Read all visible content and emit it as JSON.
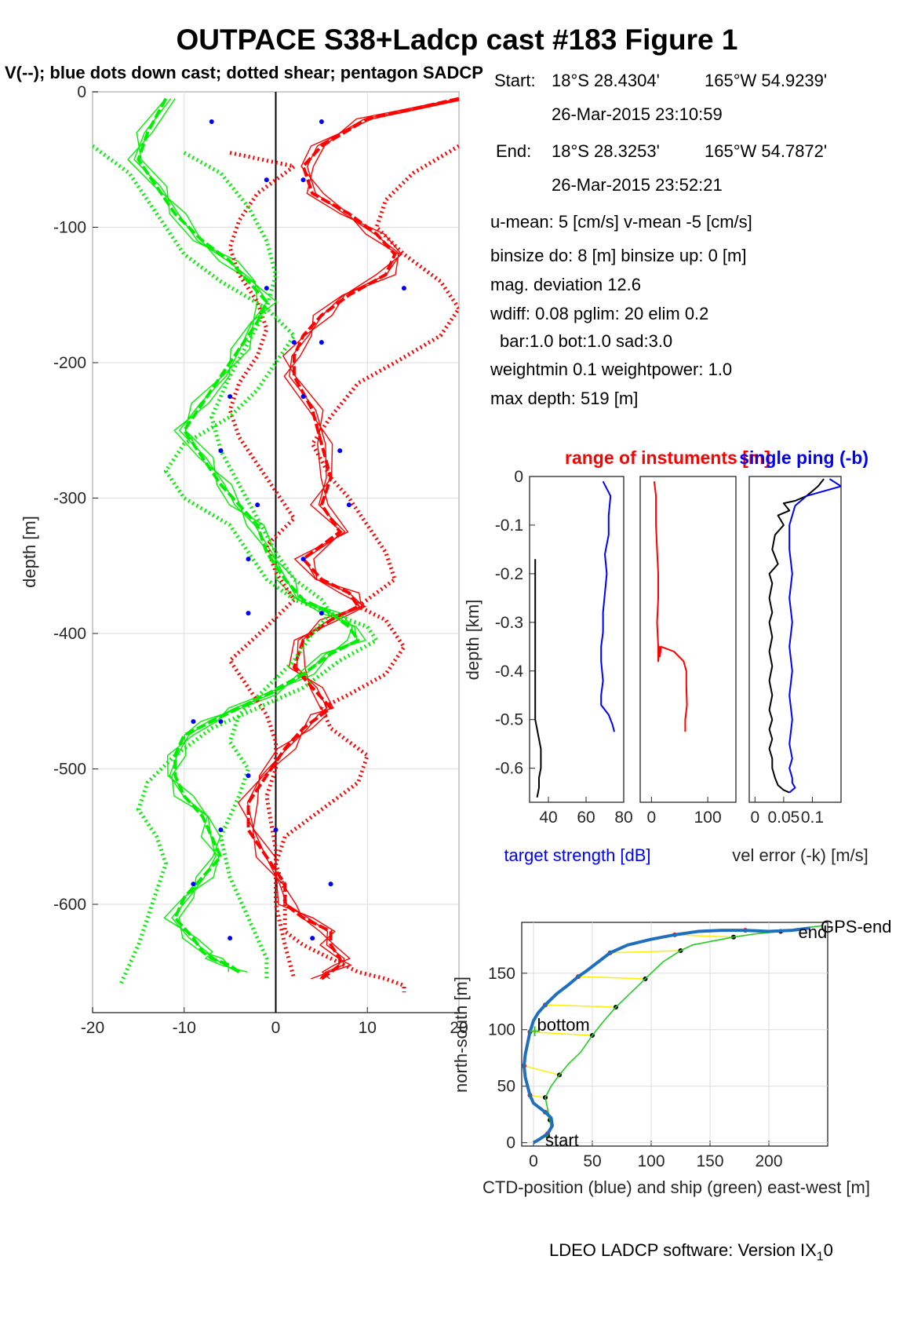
{
  "title": "OUTPACE S38+Ladcp cast #183  Figure 1",
  "subtitle": "V(--); blue dots down cast; dotted shear; pentagon SADCP",
  "info": {
    "start_label": "Start:",
    "start_lat": "18°S 28.4304'",
    "start_lon": "165°W 54.9239'",
    "start_time": "26-Mar-2015 23:10:59",
    "end_label": "End:",
    "end_lat": "18°S 28.3253'",
    "end_lon": "165°W 54.7872'",
    "end_time": "26-Mar-2015 23:52:21",
    "umean": "u-mean:   5 [cm/s]    v-mean  -5 [cm/s]",
    "binsize": "binsize do: 8 [m]  binsize up:  0 [m]",
    "magdev": "mag. deviation 12.6",
    "wdiff": "wdiff: 0.08  pglim: 20  elim 0.2",
    "bar": "bar:1.0 bot:1.0 sad:3.0",
    "weight": "weightmin 0.1  weightpower: 1.0",
    "maxdepth": "max depth: 519 [m]"
  },
  "footer": "LDEO LADCP software: Version IX",
  "footer_sub": "1",
  "footer_tail": "0",
  "colors": {
    "u": "#ff0000",
    "v": "#00ee00",
    "blue": "#0000ff",
    "track": "#1f6fbf",
    "ship": "#22cc22",
    "link": "#ffee00"
  },
  "chart_data": [
    {
      "type": "line",
      "ylabel": "depth [m]",
      "xlim": [
        -20,
        20
      ],
      "ylim": [
        -680,
        0
      ],
      "xticks": [
        -20,
        -10,
        0,
        10,
        20
      ],
      "yticks": [
        0,
        -100,
        -200,
        -300,
        -400,
        -500,
        -600
      ],
      "grid": true,
      "series": [
        {
          "color": "red",
          "style": "thick",
          "x": [
            20,
            10,
            5,
            3,
            4,
            8,
            11,
            13,
            12,
            8,
            5,
            3,
            2,
            2,
            4,
            5,
            6,
            5,
            7,
            3,
            5,
            8,
            9,
            6,
            3,
            2,
            4,
            6,
            5,
            3,
            1,
            -1,
            -3,
            -3,
            -1,
            1,
            1,
            3,
            6,
            6,
            7,
            7,
            6,
            5
          ],
          "y": [
            -5,
            -20,
            -40,
            -55,
            -75,
            -90,
            -105,
            -120,
            -135,
            -150,
            -165,
            -180,
            -195,
            -210,
            -235,
            -260,
            -285,
            -305,
            -325,
            -345,
            -360,
            -370,
            -380,
            -390,
            -405,
            -425,
            -440,
            -455,
            -460,
            -470,
            -485,
            -505,
            -525,
            -545,
            -565,
            -585,
            -600,
            -610,
            -620,
            -630,
            -640,
            -645,
            -650,
            -655
          ]
        },
        {
          "color": "red",
          "style": "dotted",
          "x": [
            20,
            15,
            12,
            11,
            14,
            18,
            20,
            18,
            13,
            9,
            6,
            4,
            6,
            8,
            10,
            12,
            13,
            9,
            12,
            14,
            12,
            8,
            5,
            6,
            10,
            9,
            5,
            1,
            0,
            1,
            1,
            1,
            3,
            6,
            9,
            12,
            14,
            14
          ],
          "y": [
            -40,
            -60,
            -80,
            -100,
            -120,
            -140,
            -160,
            -180,
            -200,
            -215,
            -240,
            -260,
            -285,
            -300,
            -320,
            -340,
            -360,
            -380,
            -390,
            -410,
            -430,
            -445,
            -455,
            -470,
            -490,
            -510,
            -530,
            -550,
            -570,
            -590,
            -600,
            -620,
            -630,
            -640,
            -650,
            -655,
            -660,
            -665
          ]
        },
        {
          "color": "red",
          "style": "dotted",
          "x": [
            -5,
            2,
            -2,
            -4,
            -5,
            -4,
            -2,
            -1,
            -2,
            -4,
            -5,
            -4,
            -2,
            0,
            2,
            -1,
            0,
            2,
            -1,
            -5,
            -3,
            -1,
            0,
            0,
            -1,
            0,
            0,
            1,
            2
          ],
          "y": [
            -45,
            -55,
            -75,
            -95,
            -115,
            -135,
            -155,
            -175,
            -195,
            -215,
            -235,
            -255,
            -275,
            -295,
            -315,
            -335,
            -355,
            -375,
            -395,
            -420,
            -440,
            -460,
            -480,
            -500,
            -520,
            -560,
            -600,
            -630,
            -655
          ]
        },
        {
          "color": "green",
          "style": "thick",
          "x": [
            -12,
            -14,
            -15,
            -13,
            -11,
            -8,
            -5,
            -3,
            -1,
            -2,
            -4,
            -6,
            -8,
            -10,
            -8,
            -6,
            -4,
            -2,
            -1,
            1,
            3,
            6,
            8,
            9,
            6,
            3,
            -1,
            -4,
            -7,
            -10,
            -11,
            -11,
            -10,
            -8,
            -7,
            -6,
            -8,
            -10,
            -11,
            -9,
            -8,
            -7,
            -5,
            -4
          ],
          "y": [
            -5,
            -30,
            -50,
            -70,
            -90,
            -110,
            -125,
            -140,
            -155,
            -170,
            -190,
            -210,
            -230,
            -250,
            -270,
            -290,
            -305,
            -320,
            -340,
            -360,
            -375,
            -385,
            -395,
            -405,
            -415,
            -430,
            -445,
            -455,
            -465,
            -475,
            -490,
            -505,
            -520,
            -535,
            -550,
            -565,
            -580,
            -595,
            -610,
            -625,
            -635,
            -640,
            -645,
            -650
          ]
        },
        {
          "color": "green",
          "style": "dotted",
          "x": [
            -20,
            -16,
            -14,
            -12,
            -10,
            -6,
            -1,
            2,
            0,
            -2,
            -5,
            -10,
            -12,
            -10,
            -5,
            -3,
            -1,
            2,
            6,
            10,
            11,
            7,
            3,
            -2,
            -7,
            -11,
            -14,
            -15,
            -13,
            -12,
            -13,
            -14,
            -15,
            -16,
            -17
          ],
          "y": [
            -40,
            -60,
            -80,
            -100,
            -120,
            -140,
            -160,
            -180,
            -200,
            -220,
            -240,
            -260,
            -280,
            -300,
            -320,
            -340,
            -360,
            -375,
            -385,
            -395,
            -405,
            -420,
            -440,
            -455,
            -470,
            -490,
            -510,
            -530,
            -550,
            -570,
            -590,
            -610,
            -630,
            -645,
            -660
          ]
        },
        {
          "color": "green",
          "style": "dotted",
          "x": [
            -10,
            -6,
            -3,
            -1,
            0,
            -1,
            -3,
            -5,
            -7,
            -6,
            -4,
            -2,
            0,
            2,
            5,
            6,
            4,
            2,
            -1,
            -4,
            -5,
            -3,
            -4,
            -6,
            -5,
            -3,
            -1,
            -1
          ],
          "y": [
            -45,
            -60,
            -85,
            -110,
            -135,
            -160,
            -185,
            -210,
            -240,
            -265,
            -290,
            -315,
            -340,
            -360,
            -375,
            -385,
            -400,
            -420,
            -440,
            -460,
            -480,
            -500,
            -520,
            -550,
            -580,
            -610,
            -640,
            -655
          ]
        }
      ],
      "dots_down_cast": {
        "x": [
          -7,
          5,
          -1,
          3,
          14,
          -1,
          2,
          5,
          -5,
          3,
          -6,
          7,
          -2,
          8,
          -3,
          3,
          -3,
          5,
          -9,
          -6,
          -3,
          -6,
          0,
          -9,
          6,
          -5,
          4
        ],
        "y": [
          -22,
          -22,
          -65,
          -65,
          -145,
          -145,
          -185,
          -185,
          -225,
          -225,
          -265,
          -265,
          -305,
          -305,
          -345,
          -345,
          -385,
          -385,
          -465,
          -465,
          -505,
          -545,
          -545,
          -585,
          -585,
          -625,
          -625
        ]
      }
    },
    {
      "type": "line",
      "title": "range of instuments [m]",
      "xlabel": "target strength [dB]",
      "ylabel": "depth [km]",
      "xlim": [
        30,
        80
      ],
      "ylim": [
        -0.67,
        0
      ],
      "xticks": [
        40,
        60,
        80
      ],
      "yticks": [
        0,
        -0.1,
        -0.2,
        -0.3,
        -0.4,
        -0.5,
        -0.6
      ],
      "series": [
        {
          "color": "blue",
          "x": [
            69,
            73,
            72,
            72,
            70,
            71,
            70,
            69,
            69,
            68,
            68,
            69,
            68,
            68,
            72,
            74,
            75
          ],
          "y": [
            -0.01,
            -0.04,
            -0.08,
            -0.12,
            -0.16,
            -0.2,
            -0.24,
            -0.28,
            -0.32,
            -0.35,
            -0.38,
            -0.42,
            -0.45,
            -0.47,
            -0.49,
            -0.51,
            -0.525
          ]
        },
        {
          "color": "black",
          "x": [
            33,
            33,
            33,
            33,
            34,
            35,
            36,
            36,
            35,
            35,
            34
          ],
          "y": [
            -0.17,
            -0.3,
            -0.4,
            -0.5,
            -0.52,
            -0.54,
            -0.56,
            -0.6,
            -0.62,
            -0.64,
            -0.66
          ]
        }
      ]
    },
    {
      "type": "line",
      "xlim": [
        -20,
        150
      ],
      "ylim": [
        -0.67,
        0
      ],
      "xticks": [
        0,
        100
      ],
      "series": [
        {
          "color": "red",
          "x": [
            5,
            8,
            8,
            10,
            12,
            12,
            10,
            12,
            12,
            14,
            15,
            17,
            40,
            57,
            62,
            62,
            63,
            60,
            60
          ],
          "y": [
            -0.01,
            -0.04,
            -0.1,
            -0.15,
            -0.2,
            -0.25,
            -0.3,
            -0.35,
            -0.38,
            -0.35,
            -0.37,
            -0.35,
            -0.36,
            -0.38,
            -0.4,
            -0.43,
            -0.47,
            -0.5,
            -0.525
          ]
        }
      ]
    },
    {
      "type": "line",
      "title": "single ping (-b)",
      "xlabel": "vel error (-k) [m/s]",
      "xlim": [
        -0.01,
        0.15
      ],
      "ylim": [
        -0.67,
        0
      ],
      "xticks": [
        0,
        0.05,
        0.1
      ],
      "xticklabels": [
        "0",
        "0.05",
        "0.1"
      ],
      "series": [
        {
          "color": "black",
          "x": [
            0.12,
            0.11,
            0.09,
            0.07,
            0.05,
            0.06,
            0.04,
            0.05,
            0.035,
            0.03,
            0.04,
            0.025,
            0.03,
            0.025,
            0.03,
            0.025,
            0.03,
            0.025,
            0.03,
            0.025,
            0.03,
            0.025,
            0.03,
            0.025,
            0.03,
            0.025,
            0.03,
            0.03,
            0.035,
            0.04,
            0.05,
            0.06
          ],
          "y": [
            -0.005,
            -0.02,
            -0.04,
            -0.05,
            -0.055,
            -0.07,
            -0.08,
            -0.1,
            -0.12,
            -0.15,
            -0.18,
            -0.2,
            -0.22,
            -0.25,
            -0.28,
            -0.3,
            -0.33,
            -0.36,
            -0.39,
            -0.42,
            -0.45,
            -0.48,
            -0.5,
            -0.52,
            -0.54,
            -0.56,
            -0.58,
            -0.6,
            -0.62,
            -0.635,
            -0.645,
            -0.65
          ]
        },
        {
          "color": "blue",
          "x": [
            0.13,
            0.15,
            0.09,
            0.07,
            0.06,
            0.06,
            0.065,
            0.06,
            0.065,
            0.06,
            0.065,
            0.06,
            0.065,
            0.06,
            0.065,
            0.06,
            0.065,
            0.065,
            0.07,
            0.06
          ],
          "y": [
            -0.005,
            -0.02,
            -0.04,
            -0.06,
            -0.1,
            -0.15,
            -0.2,
            -0.25,
            -0.3,
            -0.35,
            -0.4,
            -0.45,
            -0.5,
            -0.55,
            -0.58,
            -0.6,
            -0.62,
            -0.63,
            -0.64,
            -0.65
          ]
        }
      ]
    },
    {
      "type": "line",
      "xlabel": "CTD-position (blue) and ship (green) east-west [m]",
      "ylabel": "north-south [m]",
      "xlim": [
        -10,
        250
      ],
      "ylim": [
        -3,
        195
      ],
      "xticks": [
        0,
        50,
        100,
        150,
        200
      ],
      "yticks": [
        0,
        50,
        100,
        150
      ],
      "labels": {
        "start": "start",
        "bottom": "bottom",
        "end": "end",
        "gps_end": "GPS-end"
      },
      "series": [
        {
          "name": "CTD-position",
          "color": "blue",
          "x": [
            0,
            5,
            12,
            16,
            15,
            10,
            5,
            0,
            -3,
            -5,
            -7,
            -8,
            -7,
            -5,
            -3,
            0,
            4,
            10,
            20,
            30,
            38,
            45,
            55,
            65,
            80,
            100,
            120,
            140,
            160,
            180,
            200,
            220,
            235
          ],
          "y": [
            0,
            3,
            8,
            15,
            22,
            27,
            31,
            35,
            42,
            50,
            58,
            68,
            78,
            88,
            98,
            108,
            115,
            122,
            132,
            140,
            147,
            152,
            160,
            168,
            175,
            180,
            184,
            187,
            188,
            188,
            187,
            188,
            190
          ]
        },
        {
          "name": "ship",
          "color": "green",
          "x": [
            0,
            5,
            12,
            15,
            14,
            12,
            10,
            15,
            22,
            30,
            40,
            50,
            60,
            70,
            80,
            95,
            110,
            125,
            135,
            150,
            170,
            190,
            210,
            230,
            245
          ],
          "y": [
            0,
            3,
            6,
            12,
            20,
            30,
            40,
            50,
            60,
            70,
            80,
            95,
            108,
            120,
            130,
            145,
            160,
            170,
            175,
            178,
            182,
            185,
            187,
            190,
            192
          ]
        }
      ]
    }
  ]
}
